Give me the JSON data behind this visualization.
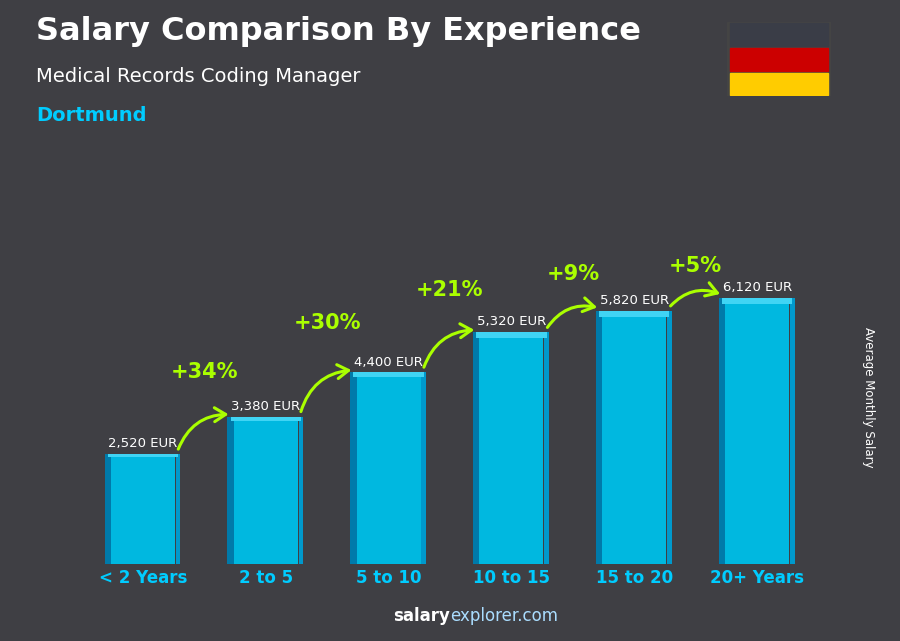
{
  "title": "Salary Comparison By Experience",
  "subtitle": "Medical Records Coding Manager",
  "city": "Dortmund",
  "categories": [
    "< 2 Years",
    "2 to 5",
    "5 to 10",
    "10 to 15",
    "15 to 20",
    "20+ Years"
  ],
  "values": [
    2520,
    3380,
    4400,
    5320,
    5820,
    6120
  ],
  "pct_changes": [
    "+34%",
    "+30%",
    "+21%",
    "+9%",
    "+5%"
  ],
  "bar_color_main": "#00b8e0",
  "bar_color_light": "#40d4f4",
  "bar_color_dark": "#007aaa",
  "bar_color_right": "#0099cc",
  "background_color": "#3a3a3a",
  "title_color": "#ffffff",
  "subtitle_color": "#ffffff",
  "city_color": "#00ccff",
  "value_label_color": "#ffffff",
  "pct_color": "#aaff00",
  "arrow_color": "#aaff00",
  "ylabel": "Average Monthly Salary",
  "ylim_max": 7800,
  "flag_colors": [
    "#3a3d47",
    "#cc0000",
    "#ffcc00"
  ],
  "footer_salary_color": "#ffffff",
  "footer_explorer_color": "#aaddff",
  "xtick_color": "#00ccff"
}
